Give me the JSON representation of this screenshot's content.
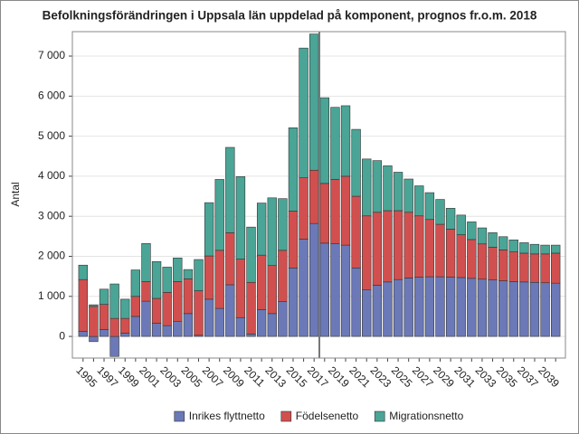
{
  "chart_data": {
    "type": "bar",
    "stacked": true,
    "title": "Befolkningsförändringen i Uppsala län uppdelad på komponent, prognos fr.o.m. 2018",
    "y_label": "Antal",
    "categories": [
      "1995",
      null,
      "1997",
      null,
      "1999",
      null,
      "2001",
      null,
      "2003",
      null,
      "2005",
      null,
      "2007",
      null,
      "2009",
      null,
      "2011",
      null,
      "2013",
      null,
      "2015",
      null,
      "2017",
      null,
      "2019",
      null,
      "2021",
      null,
      "2023",
      null,
      "2025",
      null,
      "2027",
      null,
      "2029",
      null,
      "2031",
      null,
      "2033",
      null,
      "2035",
      null,
      "2037",
      null,
      "2039",
      null
    ],
    "series": [
      {
        "name": "Inrikes flyttnetto",
        "color": "#6b79b8",
        "values": [
          130,
          -130,
          170,
          -500,
          80,
          500,
          880,
          330,
          270,
          370,
          570,
          30,
          930,
          700,
          1290,
          470,
          60,
          670,
          570,
          870,
          1710,
          2430,
          2820,
          2330,
          2320,
          2280,
          1710,
          1160,
          1280,
          1360,
          1420,
          1460,
          1480,
          1490,
          1490,
          1480,
          1470,
          1450,
          1430,
          1410,
          1390,
          1370,
          1360,
          1350,
          1340,
          1330
        ]
      },
      {
        "name": "Födelsenetto",
        "color": "#d1504f",
        "values": [
          1290,
          750,
          630,
          450,
          370,
          500,
          490,
          620,
          830,
          1000,
          870,
          1110,
          1080,
          1450,
          1300,
          1460,
          1290,
          1360,
          1200,
          1280,
          1420,
          1530,
          1330,
          1490,
          1600,
          1720,
          1790,
          1850,
          1820,
          1780,
          1720,
          1640,
          1530,
          1430,
          1310,
          1200,
          1070,
          970,
          880,
          820,
          770,
          740,
          720,
          710,
          720,
          750
        ]
      },
      {
        "name": "Migrationsnetto",
        "color": "#4aa596",
        "values": [
          360,
          40,
          380,
          860,
          480,
          660,
          950,
          920,
          630,
          590,
          230,
          780,
          1330,
          1770,
          2130,
          2060,
          1380,
          1300,
          1690,
          1290,
          2080,
          3240,
          3400,
          2140,
          1800,
          1760,
          1670,
          1420,
          1290,
          1120,
          960,
          830,
          750,
          670,
          620,
          520,
          490,
          440,
          400,
          360,
          330,
          300,
          260,
          240,
          220,
          200
        ]
      }
    ],
    "ylim": [
      -540,
      7610
    ],
    "yticks": [
      {
        "value": 0,
        "label": "0"
      },
      {
        "value": 1000,
        "label": "1 000"
      },
      {
        "value": 2000,
        "label": "2 000"
      },
      {
        "value": 3000,
        "label": "3 000"
      },
      {
        "value": 4000,
        "label": "4 000"
      },
      {
        "value": 5000,
        "label": "5 000"
      },
      {
        "value": 6000,
        "label": "6 000"
      },
      {
        "value": 7000,
        "label": "7 000"
      }
    ],
    "grid": true,
    "forecast_line_index": 23,
    "legend": "bottom"
  }
}
